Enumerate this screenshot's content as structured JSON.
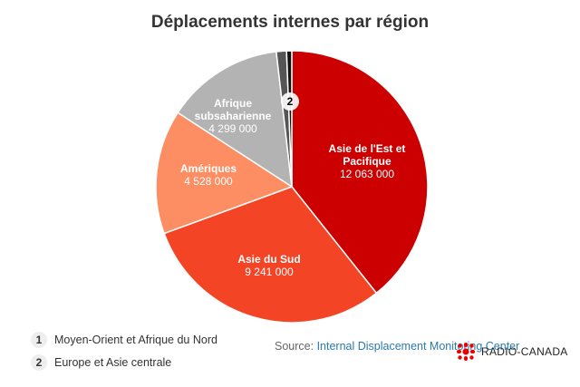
{
  "chart_data": {
    "type": "pie",
    "title": "Déplacements internes par région",
    "start_angle": "top, clockwise",
    "slices": [
      {
        "label": "Asie de l'Est et Pacifique",
        "value": 12063000,
        "display": "12 063 000",
        "color": "#cc0000"
      },
      {
        "label": "Asie du Sud",
        "value": 9241000,
        "display": "9 241 000",
        "color": "#f34426"
      },
      {
        "label": "Amériques",
        "value": 4528000,
        "display": "4 528 000",
        "color": "#fd8e63"
      },
      {
        "label": "Afrique subsaharienne",
        "value": 4299000,
        "display": "4 299 000",
        "color": "#b3b3b3"
      },
      {
        "label": "Moyen-Orient et Afrique du Nord",
        "value": 370000,
        "marker": "1",
        "color": "#555555"
      },
      {
        "label": "Europe et Asie centrale",
        "value": 190000,
        "marker": "2",
        "color": "#111111"
      }
    ]
  },
  "legend": [
    {
      "num": "1",
      "label": "Moyen-Orient et Afrique du Nord"
    },
    {
      "num": "2",
      "label": "Europe et Asie centrale"
    }
  ],
  "source": {
    "prefix": "Source: ",
    "link": "Internal Displacement Monitoring Center"
  },
  "logo": "RADIO-CANADA"
}
